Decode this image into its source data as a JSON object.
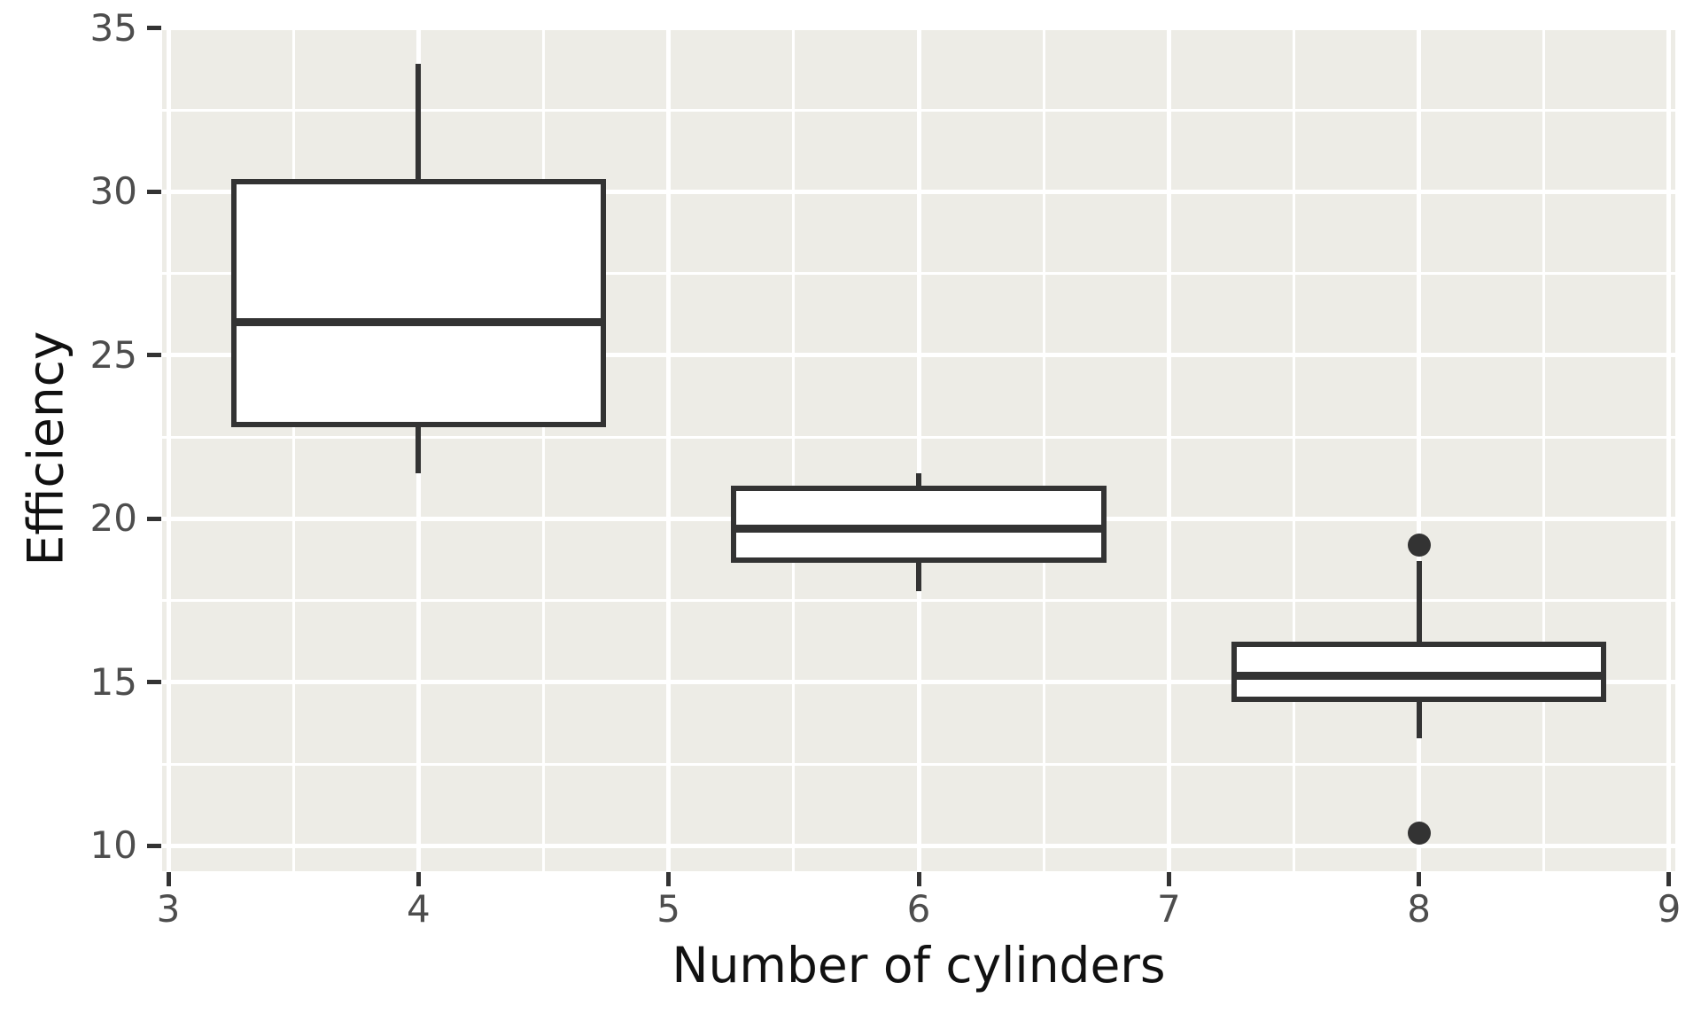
{
  "chart_data": {
    "type": "boxplot",
    "title": "",
    "xlabel": "Number of cylinders",
    "ylabel": "Efficiency",
    "x_ticks": [
      3,
      4,
      5,
      6,
      7,
      8,
      9
    ],
    "y_ticks": [
      10,
      15,
      20,
      25,
      30,
      35
    ],
    "x_minor_ticks": [
      3.5,
      4.5,
      5.5,
      6.5,
      7.5,
      8.5
    ],
    "y_minor_ticks": [
      12.5,
      17.5,
      22.5,
      27.5,
      32.5
    ],
    "xlim": [
      2.975,
      9.025
    ],
    "ylim": [
      9.225,
      35.075
    ],
    "grid": "on",
    "legend_position": "none",
    "box_width": 1.5,
    "boxes": [
      {
        "x": 4,
        "whisker_low": 21.4,
        "q1": 22.8,
        "median": 26.0,
        "q3": 30.4,
        "whisker_high": 33.9,
        "outliers": []
      },
      {
        "x": 6,
        "whisker_low": 17.8,
        "q1": 18.65,
        "median": 19.7,
        "q3": 21.0,
        "whisker_high": 21.4,
        "outliers": []
      },
      {
        "x": 8,
        "whisker_low": 13.3,
        "q1": 14.4,
        "median": 15.2,
        "q3": 16.25,
        "whisker_high": 18.7,
        "outliers": [
          19.2,
          10.4
        ]
      }
    ],
    "colors": {
      "figure_background": "#ffffff",
      "panel_background": "#edece6",
      "grid_major": "#ffffff",
      "grid_minor": "#ffffff",
      "box_line": "#333333",
      "box_fill": "#ffffff",
      "outlier": "#333333",
      "tick_mark": "#333333",
      "tick_label": "#4d4d4d",
      "axis_title": "#111111"
    }
  }
}
